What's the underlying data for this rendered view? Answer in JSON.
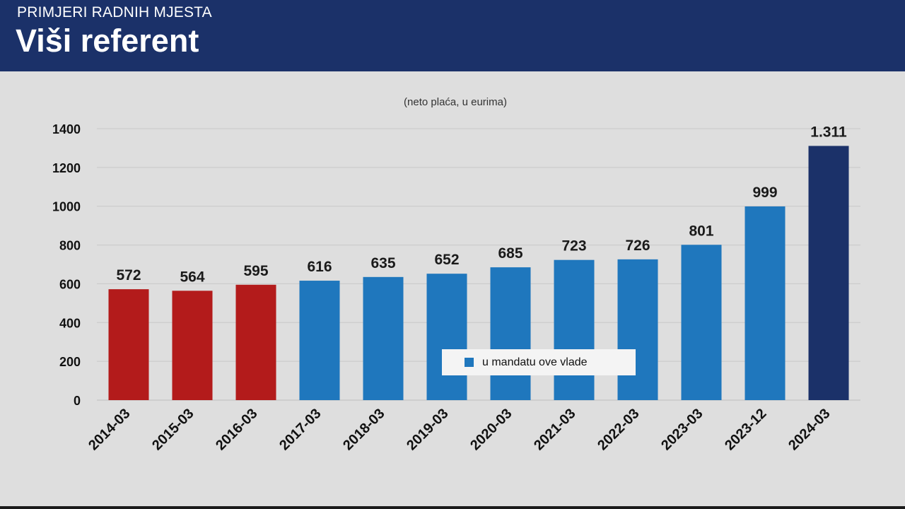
{
  "header": {
    "kicker": "PRIMJERI RADNIH MJESTA",
    "title": "Viši referent"
  },
  "colors": {
    "header_bg": "#1b3169",
    "red": "#b31b1b",
    "blue": "#1f77bd",
    "navy": "#1b3169"
  },
  "chart_data": {
    "type": "bar",
    "subtitle": "(neto plaća, u eurima)",
    "categories": [
      "2014-03",
      "2015-03",
      "2016-03",
      "2017-03",
      "2018-03",
      "2019-03",
      "2020-03",
      "2021-03",
      "2022-03",
      "2023-03",
      "2023-12",
      "2024-03"
    ],
    "values": [
      572,
      564,
      595,
      616,
      635,
      652,
      685,
      723,
      726,
      801,
      999,
      1311
    ],
    "value_labels": [
      "572",
      "564",
      "595",
      "616",
      "635",
      "652",
      "685",
      "723",
      "726",
      "801",
      "999",
      "1.311"
    ],
    "bar_colors": [
      "red",
      "red",
      "red",
      "blue",
      "blue",
      "blue",
      "blue",
      "blue",
      "blue",
      "blue",
      "blue",
      "navy"
    ],
    "y_ticks": [
      "0",
      "200",
      "400",
      "600",
      "800",
      "1000",
      "1200",
      "1400"
    ],
    "ylim": [
      0,
      1400
    ],
    "grid": true,
    "legend": {
      "label": "u mandatu ove vlade",
      "color": "blue",
      "placement": "bottom-center"
    }
  }
}
